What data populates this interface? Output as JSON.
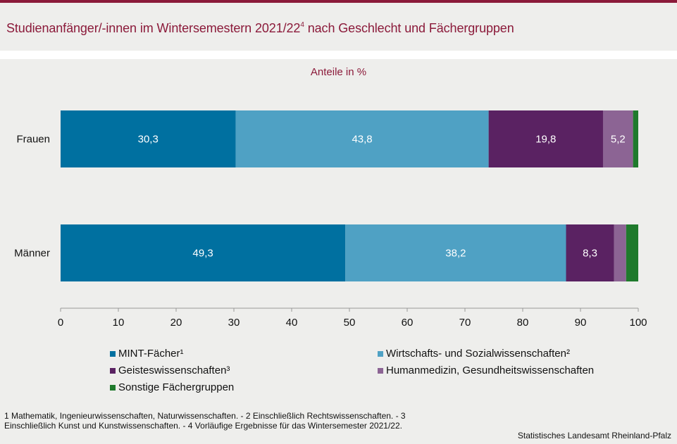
{
  "header": {
    "title_main": "Studienanfänger/-innen im Wintersemestern 2021/22",
    "title_sup": "4",
    "title_rest": " nach Geschlecht und Fächergruppen"
  },
  "footnote": "1 Mathematik, Ingenieurwissenschaften, Naturwissenschaften. - 2 Einschließlich Rechtswissenschaften. - 3 Einschließlich Kunst und Kunstwissenschaften. - 4 Vorläufige Ergebnisse für das Wintersemester 2021/22.",
  "source": "Statistisches Landesamt Rheinland-Pfalz",
  "chart_data": {
    "type": "bar",
    "orientation": "horizontal",
    "stacked": true,
    "subtitle": "Anteile in %",
    "categories": [
      "Frauen",
      "Männer"
    ],
    "series": [
      {
        "name": "MINT-Fächer¹",
        "color": "#0070a0",
        "values": [
          30.3,
          49.3
        ],
        "labels": [
          "30,3",
          "49,3"
        ]
      },
      {
        "name": "Wirtschafts- und Sozialwissenschaften²",
        "color": "#4fa1c4",
        "values": [
          43.8,
          38.2
        ],
        "labels": [
          "43,8",
          "38,2"
        ]
      },
      {
        "name": "Geisteswissenschaften³",
        "color": "#5a2262",
        "values": [
          19.8,
          8.3
        ],
        "labels": [
          "19,8",
          "8,3"
        ]
      },
      {
        "name": "Humanmedizin, Gesundheitswissenschaften",
        "color": "#8c6494",
        "values": [
          5.2,
          2.1
        ],
        "labels": [
          "5,2",
          ""
        ]
      },
      {
        "name": "Sonstige Fächergruppen",
        "color": "#1f7a2c",
        "values": [
          0.9,
          2.1
        ],
        "labels": [
          "",
          ""
        ]
      }
    ],
    "xlim": [
      0,
      100
    ],
    "xticks": [
      0,
      10,
      20,
      30,
      40,
      50,
      60,
      70,
      80,
      90,
      100
    ],
    "legend_position": "bottom"
  }
}
